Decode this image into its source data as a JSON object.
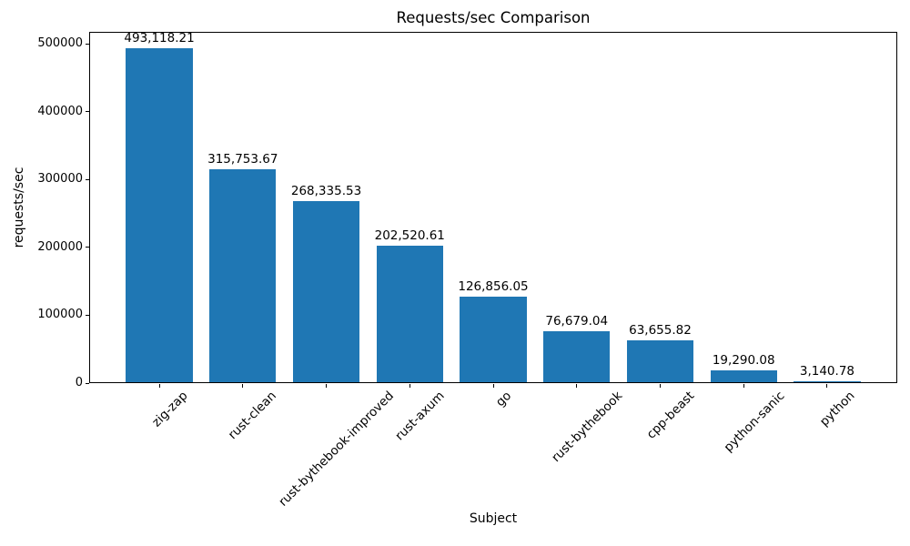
{
  "chart_data": {
    "type": "bar",
    "title": "Requests/sec Comparison",
    "xlabel": "Subject",
    "ylabel": "requests/sec",
    "categories": [
      "zig-zap",
      "rust-clean",
      "rust-bythebook-improved",
      "rust-axum",
      "go",
      "rust-bythebook",
      "cpp-beast",
      "python-sanic",
      "python"
    ],
    "values": [
      493118.21,
      315753.67,
      268335.53,
      202520.61,
      126856.05,
      76679.04,
      63655.82,
      19290.08,
      3140.78
    ],
    "value_labels": [
      "493,118.21",
      "315,753.67",
      "268,335.53",
      "202,520.61",
      "126,856.05",
      "76,679.04",
      "63,655.82",
      "19,290.08",
      "3,140.78"
    ],
    "yticks": [
      0,
      100000,
      200000,
      300000,
      400000,
      500000
    ],
    "ytick_labels": [
      "0",
      "100000",
      "200000",
      "300000",
      "400000",
      "500000"
    ],
    "ylim": [
      0,
      517774
    ],
    "bar_color": "#1f77b4",
    "axis_color": "#000000",
    "background_color": "#ffffff",
    "grid": false,
    "legend": "none",
    "x_tick_rotation_deg": 45
  }
}
